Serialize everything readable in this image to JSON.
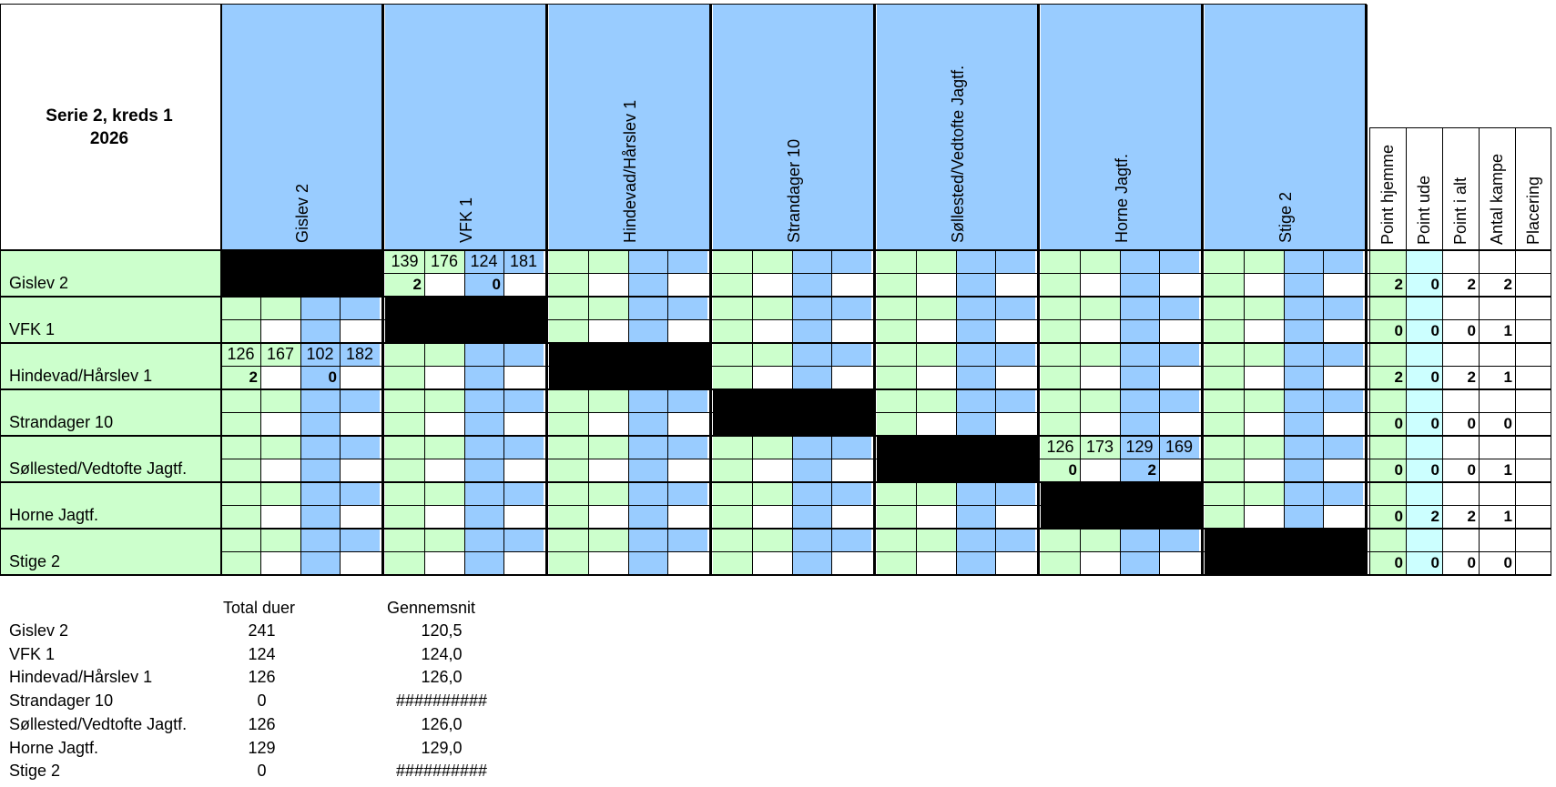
{
  "title": {
    "line1": "Serie 2, kreds 1",
    "line2": "2026"
  },
  "teams": [
    "Gislev 2",
    "VFK 1",
    "Hindevad/Hårslev 1",
    "Strandager 10",
    "Søllested/Vedtofte Jagtf.",
    "Horne Jagtf.",
    "Stige 2"
  ],
  "stat_headers": [
    "Point hjemme",
    "Point ude",
    "Point i alt",
    "Antal kampe",
    "Placering"
  ],
  "matches": [
    {
      "row": 0,
      "col": 1,
      "scores": [
        "139",
        "176",
        "124",
        "181"
      ],
      "points": [
        "2",
        "",
        "0",
        ""
      ]
    },
    {
      "row": 2,
      "col": 0,
      "scores": [
        "126",
        "167",
        "102",
        "182"
      ],
      "points": [
        "2",
        "",
        "0",
        ""
      ]
    },
    {
      "row": 4,
      "col": 5,
      "scores": [
        "126",
        "173",
        "129",
        "169"
      ],
      "points": [
        "0",
        "",
        "2",
        ""
      ]
    }
  ],
  "stats": [
    [
      "2",
      "0",
      "2",
      "2",
      ""
    ],
    [
      "0",
      "0",
      "0",
      "1",
      ""
    ],
    [
      "2",
      "0",
      "2",
      "1",
      ""
    ],
    [
      "0",
      "0",
      "0",
      "0",
      ""
    ],
    [
      "0",
      "0",
      "0",
      "1",
      ""
    ],
    [
      "0",
      "2",
      "2",
      "1",
      ""
    ],
    [
      "0",
      "0",
      "0",
      "0",
      ""
    ]
  ],
  "summary": {
    "headers": {
      "total": "Total duer",
      "avg": "Gennemsnit"
    },
    "rows": [
      {
        "team": "Gislev 2",
        "total": "241",
        "avg": "120,5"
      },
      {
        "team": "VFK 1",
        "total": "124",
        "avg": "124,0"
      },
      {
        "team": "Hindevad/Hårslev 1",
        "total": "126",
        "avg": "126,0"
      },
      {
        "team": "Strandager 10",
        "total": "0",
        "avg": "##########"
      },
      {
        "team": "Søllested/Vedtofte Jagtf.",
        "total": "126",
        "avg": "126,0"
      },
      {
        "team": "Horne Jagtf.",
        "total": "129",
        "avg": "129,0"
      },
      {
        "team": "Stige 2",
        "total": "0",
        "avg": "##########"
      }
    ]
  },
  "colors": {
    "green": "#ccffcc",
    "blue": "#99ccff",
    "lightblue": "#ccffff",
    "black": "#000000"
  }
}
